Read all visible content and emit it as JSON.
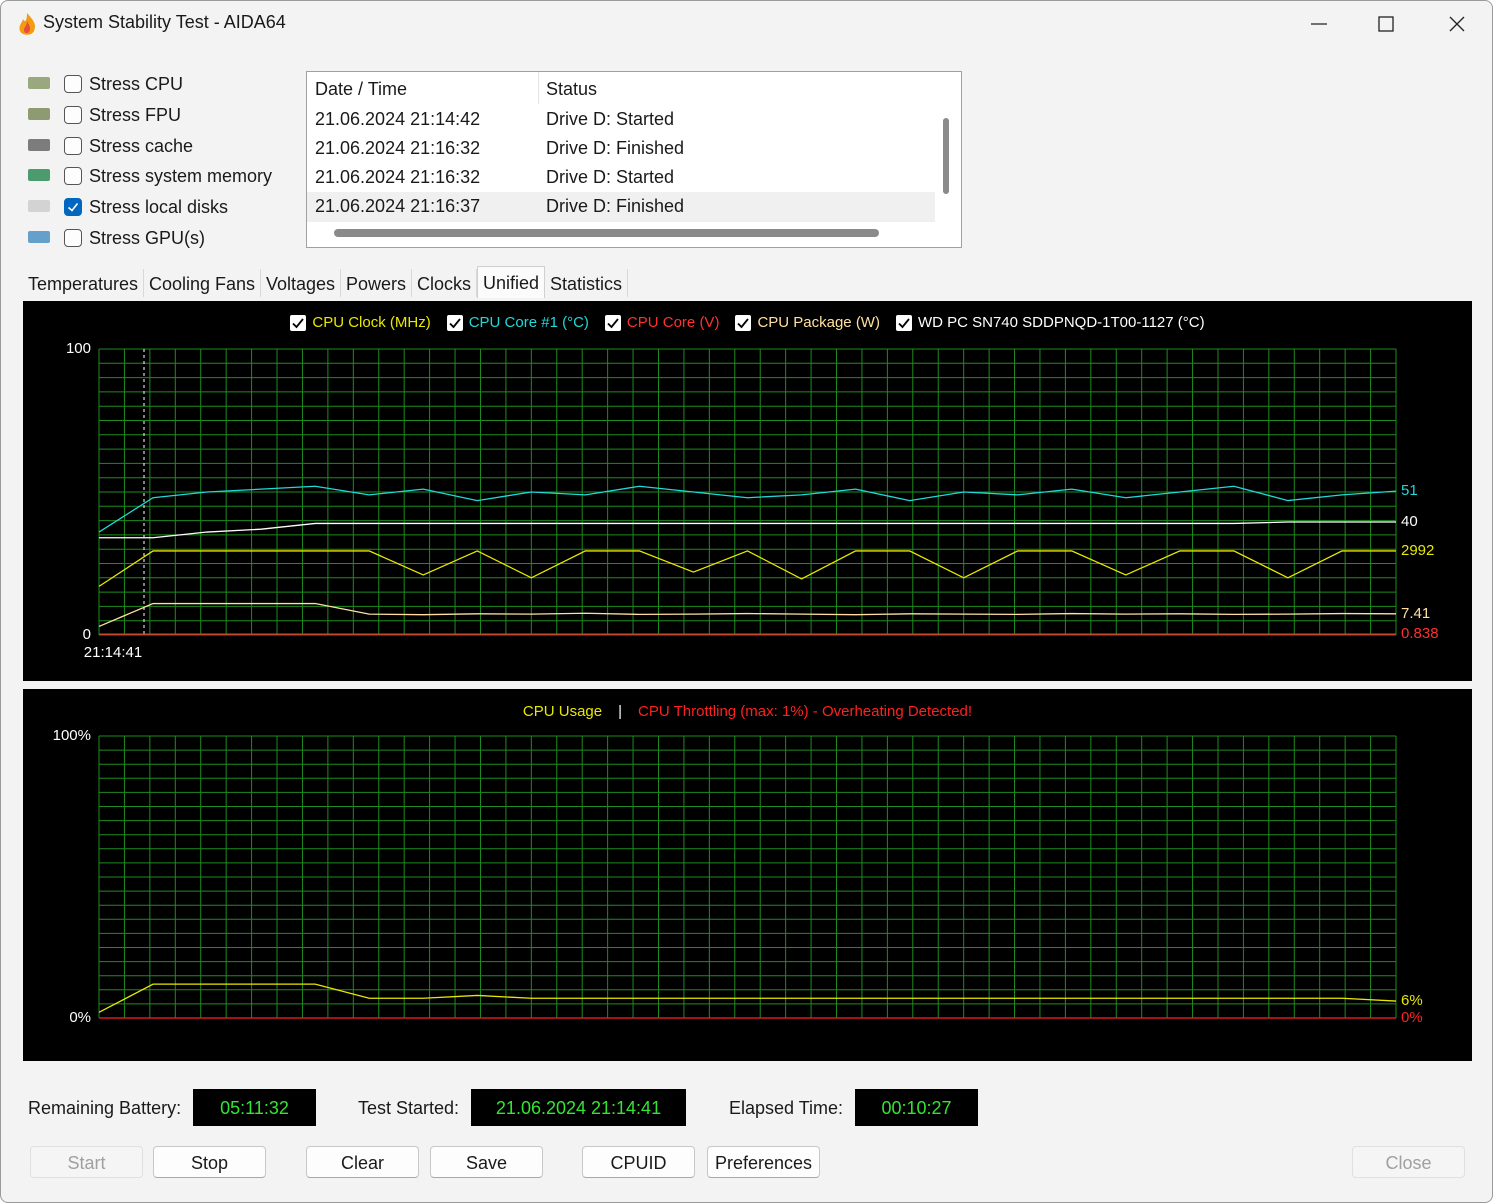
{
  "window": {
    "title": "System Stability Test - AIDA64"
  },
  "stress_options": [
    {
      "label": "Stress CPU",
      "checked": false
    },
    {
      "label": "Stress FPU",
      "checked": false
    },
    {
      "label": "Stress cache",
      "checked": false
    },
    {
      "label": "Stress system memory",
      "checked": false
    },
    {
      "label": "Stress local disks",
      "checked": true
    },
    {
      "label": "Stress GPU(s)",
      "checked": false
    }
  ],
  "log": {
    "columns": [
      "Date / Time",
      "Status"
    ],
    "rows": [
      [
        "21.06.2024 21:14:42",
        "Drive D: Started"
      ],
      [
        "21.06.2024 21:16:32",
        "Drive D: Finished"
      ],
      [
        "21.06.2024 21:16:32",
        "Drive D: Started"
      ],
      [
        "21.06.2024 21:16:37",
        "Drive D: Finished"
      ]
    ],
    "selected_row": 3
  },
  "tabs": {
    "items": [
      "Temperatures",
      "Cooling Fans",
      "Voltages",
      "Powers",
      "Clocks",
      "Unified",
      "Statistics"
    ],
    "active": 5
  },
  "graph_top": {
    "y_top_label": "100",
    "y_bottom_label": "0",
    "x_start_label": "21:14:41",
    "ylim": [
      0,
      100
    ],
    "series": [
      {
        "name": "CPU Clock (MHz)",
        "color": "#e8e800",
        "checked": true,
        "readout": "2992",
        "values": [
          17,
          29.4,
          29.4,
          29.4,
          29.4,
          29.4,
          21,
          29.4,
          20,
          29.4,
          29.4,
          22,
          29.4,
          19.6,
          29.4,
          29.4,
          20,
          29.4,
          29.4,
          21,
          29.4,
          29.4,
          20,
          29.4,
          29.4
        ]
      },
      {
        "name": "CPU Core #1 (°C)",
        "color": "#20d8d8",
        "checked": true,
        "readout": "51",
        "values": [
          36,
          48,
          50,
          51,
          52,
          49,
          51,
          47,
          50,
          49,
          52,
          50,
          48,
          49,
          51,
          47,
          50,
          49,
          51,
          48,
          50,
          52,
          47,
          49,
          50.3
        ]
      },
      {
        "name": "CPU Core (V)",
        "color": "#ff3030",
        "checked": true,
        "readout": "0.838",
        "values": [
          0.3,
          0.3,
          0.3,
          0.3,
          0.3,
          0.3,
          0.3,
          0.3,
          0.3,
          0.3,
          0.3,
          0.3,
          0.3,
          0.3,
          0.3,
          0.3,
          0.3,
          0.3,
          0.3,
          0.3,
          0.3,
          0.3,
          0.3,
          0.3,
          0.3
        ]
      },
      {
        "name": "CPU Package (W)",
        "color": "#ffe0a0",
        "checked": true,
        "readout": "7.41",
        "values": [
          3,
          11,
          11,
          11,
          11,
          7.3,
          7.1,
          7.4,
          7.3,
          7.6,
          7.2,
          7.3,
          7.5,
          7.3,
          7.1,
          7.4,
          7.3,
          7.2,
          7.5,
          7.3,
          7.4,
          7.2,
          7.3,
          7.5,
          7.4
        ]
      },
      {
        "name": "WD PC SN740 SDDPNQD-1T00-1127 (°C)",
        "color": "#ffffff",
        "checked": true,
        "readout": "40",
        "values": [
          34,
          34,
          36,
          37,
          39,
          39,
          39,
          39,
          39,
          39,
          39,
          39,
          39,
          39,
          39,
          39,
          39,
          39,
          39,
          39,
          39,
          39,
          39.5,
          39.5,
          39.5
        ]
      }
    ]
  },
  "graph_bottom": {
    "y_top_label": "100%",
    "y_bottom_label": "0%",
    "ylim": [
      0,
      100
    ],
    "separator": "|",
    "series": [
      {
        "name": "CPU Usage",
        "color": "#e8e800",
        "readout": "6%",
        "values": [
          2,
          12,
          12,
          12,
          12,
          7,
          7,
          8,
          7,
          7,
          7,
          7,
          7,
          7,
          7,
          7,
          7,
          7,
          7,
          7,
          7,
          7,
          7,
          7,
          6
        ]
      },
      {
        "name": "CPU Throttling (max: 1%) - Overheating Detected!",
        "color": "#ff2020",
        "readout": "0%",
        "values": [
          0,
          0,
          0,
          0,
          0,
          0,
          0,
          0,
          0,
          0,
          0,
          0,
          0,
          0,
          0,
          0,
          0,
          0,
          0,
          0,
          0,
          0,
          0,
          0,
          0
        ]
      }
    ]
  },
  "status": [
    {
      "label": "Remaining Battery:",
      "value": "05:11:32"
    },
    {
      "label": "Test Started:",
      "value": "21.06.2024 21:14:41"
    },
    {
      "label": "Elapsed Time:",
      "value": "00:10:27"
    }
  ],
  "buttons": [
    {
      "label": "Start",
      "enabled": false
    },
    {
      "label": "Stop",
      "enabled": true
    },
    {
      "label": "Clear",
      "enabled": true
    },
    {
      "label": "Save",
      "enabled": true
    },
    {
      "label": "CPUID",
      "enabled": true
    },
    {
      "label": "Preferences",
      "enabled": true
    },
    {
      "label": "Close",
      "enabled": false
    }
  ]
}
